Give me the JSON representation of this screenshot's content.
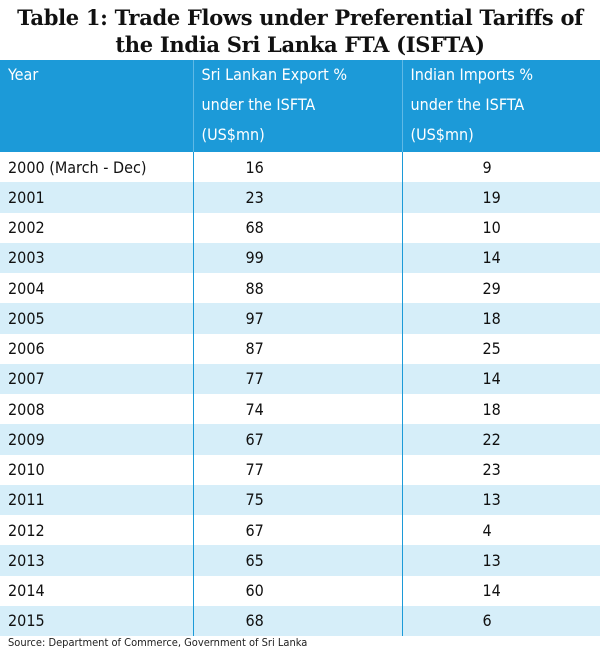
{
  "title": [
    "Table 1: Trade Flows under Preferential Tariffs of",
    "the India Sri Lanka FTA (ISFTA)"
  ],
  "table": {
    "header": [
      [
        "Year"
      ],
      [
        "Sri Lankan Export %",
        "under the ISFTA",
        "(US$mn)"
      ],
      [
        "Indian Imports %",
        "under the ISFTA",
        "(US$mn)"
      ]
    ],
    "rows": [
      [
        "2000 (March - Dec)",
        16,
        9
      ],
      [
        "2001",
        23,
        19
      ],
      [
        "2002",
        68,
        10
      ],
      [
        "2003",
        99,
        14
      ],
      [
        "2004",
        88,
        29
      ],
      [
        "2005",
        97,
        18
      ],
      [
        "2006",
        87,
        25
      ],
      [
        "2007",
        77,
        14
      ],
      [
        "2008",
        74,
        18
      ],
      [
        "2009",
        67,
        22
      ],
      [
        "2010",
        77,
        23
      ],
      [
        "2011",
        75,
        13
      ],
      [
        "2012",
        67,
        4
      ],
      [
        "2013",
        65,
        13
      ],
      [
        "2014",
        60,
        14
      ],
      [
        "2015",
        68,
        6
      ]
    ]
  },
  "source": "Source: Department of Commerce, Government of Sri Lanka"
}
